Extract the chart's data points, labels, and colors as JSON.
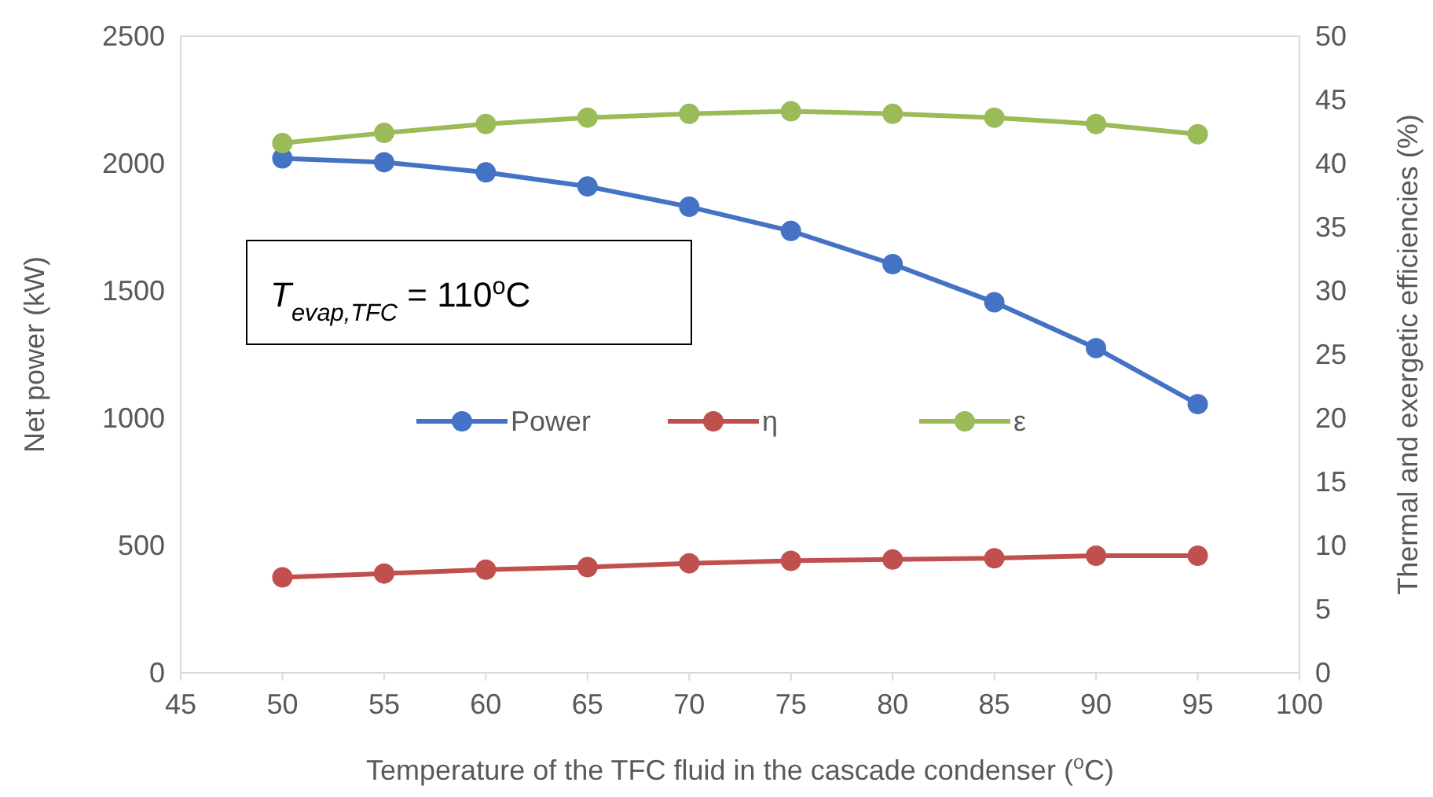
{
  "chart_data": {
    "type": "line",
    "xlabel": "Temperature of the TFC fluid in the cascade condenser ($^{o}$C)",
    "ylabel": "Net power (kW)",
    "y2label": "Thermal and exergetic efficiencies (%)",
    "x": [
      50,
      55,
      60,
      65,
      70,
      75,
      80,
      85,
      90,
      95
    ],
    "series": [
      {
        "name": "Power",
        "color": "#4472c4",
        "values": [
          2020,
          2005,
          1965,
          1910,
          1830,
          1735,
          1605,
          1455,
          1275,
          1055
        ]
      },
      {
        "name": "η",
        "color": "#c0504d",
        "axis": "y2",
        "values": [
          7.5,
          7.8,
          8.1,
          8.3,
          8.6,
          8.8,
          8.9,
          9.0,
          9.2,
          9.2
        ]
      },
      {
        "name": "ε",
        "color": "#9bbb59",
        "axis": "y2",
        "values": [
          41.6,
          42.4,
          43.1,
          43.6,
          43.9,
          44.1,
          43.9,
          43.6,
          43.1,
          42.3
        ]
      }
    ],
    "xlim": [
      45,
      100
    ],
    "xticks": [
      45,
      50,
      55,
      60,
      65,
      70,
      75,
      80,
      85,
      90,
      95,
      100
    ],
    "ylim": [
      0,
      2500
    ],
    "yticks": [
      0,
      500,
      1000,
      1500,
      2000,
      2500
    ],
    "y2lim": [
      0,
      50
    ],
    "y2ticks": [
      0,
      5,
      10,
      15,
      20,
      25,
      30,
      35,
      40,
      45,
      50
    ],
    "annotations": [
      "T$_{evap,TFC}$ = 110$^{o}$C"
    ],
    "legend": "center",
    "marker": "circle",
    "line_style": "solid",
    "grid": false
  }
}
